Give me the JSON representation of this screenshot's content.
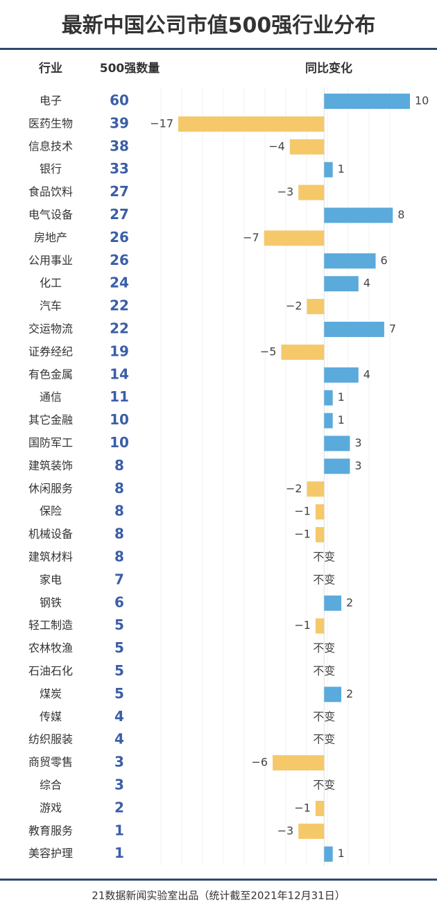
{
  "chart_data": {
    "type": "bar",
    "title": "最新中国公司市值500强行业分布",
    "category_header": "行业",
    "categories": [
      "电子",
      "医药生物",
      "信息技术",
      "银行",
      "食品饮料",
      "电气设备",
      "房地产",
      "公用事业",
      "化工",
      "汽车",
      "交运物流",
      "证券经纪",
      "有色金属",
      "通信",
      "其它金融",
      "国防军工",
      "建筑装饰",
      "休闲服务",
      "保险",
      "机械设备",
      "建筑材料",
      "家电",
      "钢铁",
      "轻工制造",
      "农林牧渔",
      "石油石化",
      "煤炭",
      "传媒",
      "纺织服装",
      "商贸零售",
      "综合",
      "游戏",
      "教育服务",
      "美容护理"
    ],
    "series": [
      {
        "name": "500强数量",
        "color": "#3a5ea8",
        "values": [
          60,
          39,
          38,
          33,
          27,
          27,
          26,
          26,
          24,
          22,
          22,
          19,
          14,
          11,
          10,
          10,
          8,
          8,
          8,
          8,
          8,
          7,
          6,
          5,
          5,
          5,
          5,
          4,
          4,
          3,
          3,
          2,
          1,
          1
        ]
      },
      {
        "name": "同比变化",
        "positive_color": "#5aaadb",
        "negative_color": "#f5c86a",
        "values": [
          10,
          -17,
          -4,
          1,
          -3,
          8,
          -7,
          6,
          4,
          -2,
          7,
          -5,
          4,
          1,
          1,
          3,
          3,
          -2,
          -1,
          -1,
          0,
          0,
          2,
          -1,
          0,
          0,
          2,
          0,
          0,
          -6,
          0,
          -1,
          -3,
          1
        ],
        "value_labels": [
          "10",
          "−17",
          "−4",
          "1",
          "−3",
          "8",
          "−7",
          "6",
          "4",
          "−2",
          "7",
          "−5",
          "4",
          "1",
          "1",
          "3",
          "3",
          "−2",
          "−1",
          "−1",
          "不变",
          "不变",
          "2",
          "−1",
          "不变",
          "不变",
          "2",
          "不变",
          "不变",
          "−6",
          "不变",
          "−1",
          "−3",
          "1"
        ]
      }
    ],
    "footer": "21数据新闻实验室出品（统计截至2021年12月31日）"
  }
}
